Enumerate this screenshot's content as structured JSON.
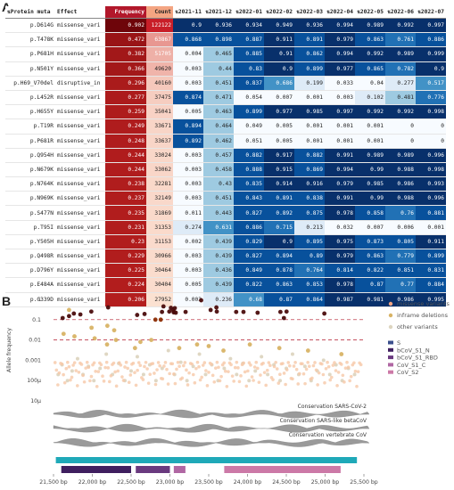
{
  "panel_a": {
    "letter": "A",
    "columns": [
      "Protein muta",
      "Effect",
      "Frequency",
      "Count",
      "2021-11",
      "2021-12",
      "2022-01",
      "2022-02",
      "2022-03",
      "2022-04",
      "2022-05",
      "2022-06",
      "2022-07"
    ],
    "rows": [
      [
        "p.D614G",
        "missense_vari",
        "0.902",
        "122122",
        "0.9",
        "0.936",
        "0.934",
        "0.949",
        "0.936",
        "0.994",
        "0.989",
        "0.992",
        "0.997"
      ],
      [
        "p.T478K",
        "missense_vari",
        "0.472",
        "63867",
        "0.868",
        "0.898",
        "0.887",
        "0.911",
        "0.891",
        "0.979",
        "0.863",
        "0.761",
        "0.886"
      ],
      [
        "p.P681H",
        "missense_vari",
        "0.382",
        "51705",
        "0.004",
        "0.465",
        "0.885",
        "0.91",
        "0.862",
        "0.994",
        "0.992",
        "0.989",
        "0.999"
      ],
      [
        "p.N501Y",
        "missense_vari",
        "0.366",
        "49620",
        "0.003",
        "0.44",
        "0.83",
        "0.9",
        "0.899",
        "0.977",
        "0.865",
        "0.782",
        "0.9"
      ],
      [
        "p.H69_V70del",
        "disruptive_in",
        "0.296",
        "40160",
        "0.003",
        "0.451",
        "0.837",
        "0.686",
        "0.199",
        "0.033",
        "0.04",
        "0.277",
        "0.517"
      ],
      [
        "p.L452R",
        "missense_vari",
        "0.277",
        "37475",
        "0.874",
        "0.471",
        "0.054",
        "0.007",
        "0.001",
        "0.003",
        "0.102",
        "0.481",
        "0.776"
      ],
      [
        "p.H655Y",
        "missense_vari",
        "0.259",
        "35041",
        "0.005",
        "0.463",
        "0.899",
        "0.977",
        "0.985",
        "0.997",
        "0.992",
        "0.992",
        "0.998"
      ],
      [
        "p.T19R",
        "missense_vari",
        "0.249",
        "33671",
        "0.894",
        "0.464",
        "0.049",
        "0.005",
        "0.001",
        "0.001",
        "0.001",
        "0",
        "0"
      ],
      [
        "p.P681R",
        "missense_vari",
        "0.248",
        "33637",
        "0.892",
        "0.462",
        "0.051",
        "0.005",
        "0.001",
        "0.001",
        "0.001",
        "0",
        "0"
      ],
      [
        "p.Q954H",
        "missense_vari",
        "0.244",
        "33024",
        "0.003",
        "0.457",
        "0.882",
        "0.917",
        "0.882",
        "0.991",
        "0.989",
        "0.989",
        "0.996"
      ],
      [
        "p.N679K",
        "missense_vari",
        "0.244",
        "33062",
        "0.003",
        "0.458",
        "0.888",
        "0.915",
        "0.869",
        "0.994",
        "0.99",
        "0.988",
        "0.998"
      ],
      [
        "p.N764K",
        "missense_vari",
        "0.238",
        "32281",
        "0.003",
        "0.43",
        "0.835",
        "0.914",
        "0.916",
        "0.979",
        "0.985",
        "0.986",
        "0.993"
      ],
      [
        "p.N969K",
        "missense_vari",
        "0.237",
        "32149",
        "0.003",
        "0.451",
        "0.843",
        "0.891",
        "0.838",
        "0.991",
        "0.99",
        "0.988",
        "0.996"
      ],
      [
        "p.S477N",
        "missense_vari",
        "0.235",
        "31869",
        "0.011",
        "0.443",
        "0.827",
        "0.892",
        "0.875",
        "0.978",
        "0.858",
        "0.76",
        "0.881"
      ],
      [
        "p.T95I",
        "missense_vari",
        "0.231",
        "31353",
        "0.274",
        "0.631",
        "0.886",
        "0.715",
        "0.213",
        "0.032",
        "0.007",
        "0.006",
        "0.001"
      ],
      [
        "p.Y505H",
        "missense_vari",
        "0.23",
        "31153",
        "0.002",
        "0.439",
        "0.829",
        "0.9",
        "0.895",
        "0.975",
        "0.873",
        "0.805",
        "0.911"
      ],
      [
        "p.Q498R",
        "missense_vari",
        "0.229",
        "30966",
        "0.003",
        "0.439",
        "0.827",
        "0.894",
        "0.89",
        "0.979",
        "0.863",
        "0.779",
        "0.899"
      ],
      [
        "p.D796Y",
        "missense_vari",
        "0.225",
        "30464",
        "0.003",
        "0.436",
        "0.849",
        "0.878",
        "0.764",
        "0.814",
        "0.822",
        "0.851",
        "0.831"
      ],
      [
        "p.E484A",
        "missense_vari",
        "0.224",
        "30404",
        "0.005",
        "0.439",
        "0.822",
        "0.863",
        "0.853",
        "0.978",
        "0.87",
        "0.77",
        "0.884"
      ],
      [
        "p.G339D",
        "missense_vari",
        "0.206",
        "27952",
        "0.003",
        "0.236",
        "0.68",
        "0.87",
        "0.864",
        "0.987",
        "0.981",
        "0.986",
        "0.995"
      ]
    ]
  },
  "panel_b": {
    "letter": "B",
    "y_tick_labels": [
      "1",
      "0.1",
      "0.01",
      "0.001",
      "100μ",
      "10μ"
    ],
    "x_tick_labels": [
      "21,500 bp",
      "22,000 bp",
      "22,500 bp",
      "23,000 bp",
      "23,500 bp",
      "24,000 bp",
      "24,500 bp",
      "25,000 bp",
      "25,500 bp"
    ],
    "ylabel": "Allele frequency",
    "legend": [
      {
        "label": "missense variants",
        "color": "#f4a582",
        "kind": "dot"
      },
      {
        "label": "inframe deletions",
        "color": "#d8b365",
        "kind": "dot"
      },
      {
        "label": "other variants",
        "color": "#ddd5c0",
        "kind": "dot"
      },
      {
        "label": "S",
        "color": "#3b4f8c",
        "kind": "bar"
      },
      {
        "label": "bCoV_S1_N",
        "color": "#3f1f5f",
        "kind": "bar"
      },
      {
        "label": "bCoV_S1_RBD",
        "color": "#6a3a7f",
        "kind": "bar"
      },
      {
        "label": "CoV_S1_C",
        "color": "#b067a3",
        "kind": "bar"
      },
      {
        "label": "CoV_S2",
        "color": "#cc79a7",
        "kind": "bar"
      }
    ],
    "conservation_tracks": [
      "Conservation SARS-CoV-2",
      "Conservation SARS-like betaCoV",
      "Conservation vertebrate CoV"
    ]
  },
  "chart_data": {
    "type": "scatter",
    "xlabel": "",
    "ylabel": "Allele frequency",
    "xlim": [
      21500,
      25500
    ],
    "ylim": [
      1e-05,
      1
    ],
    "y_scale": "log",
    "grid": false,
    "legend_placement": "right",
    "series": [
      {
        "name": "missense variants",
        "color": "#f4a582",
        "points": [
          [
            21618,
            0.12
          ],
          [
            21700,
            0.15
          ],
          [
            21762,
            0.2
          ],
          [
            21846,
            0.18
          ],
          [
            21987,
            0.25
          ],
          [
            22204,
            0.4
          ],
          [
            22578,
            0.17
          ],
          [
            22673,
            0.19
          ],
          [
            22813,
            0.1
          ],
          [
            22882,
            0.1
          ],
          [
            22898,
            0.24
          ],
          [
            22917,
            0.45
          ],
          [
            22992,
            0.25
          ],
          [
            23013,
            0.38
          ],
          [
            23040,
            0.3
          ],
          [
            23048,
            0.23
          ],
          [
            23055,
            0.24
          ],
          [
            23063,
            0.37
          ],
          [
            23075,
            0.22
          ],
          [
            23202,
            0.24
          ],
          [
            23403,
            0.9
          ],
          [
            23525,
            0.3
          ],
          [
            23599,
            0.4
          ],
          [
            23604,
            0.25
          ],
          [
            23854,
            0.24
          ],
          [
            23948,
            0.24
          ],
          [
            24130,
            0.22
          ],
          [
            24424,
            0.24
          ],
          [
            24469,
            0.12
          ],
          [
            24503,
            0.25
          ],
          [
            24990,
            0.2
          ]
        ]
      },
      {
        "name": "inframe deletions",
        "color": "#d8b365",
        "points": [
          [
            21630,
            0.02
          ],
          [
            21700,
            0.3
          ],
          [
            21770,
            0.015
          ],
          [
            21990,
            0.04
          ],
          [
            22030,
            0.012
          ],
          [
            22190,
            0.006
          ],
          [
            22194,
            0.05
          ],
          [
            22282,
            0.03
          ],
          [
            22305,
            0.01
          ],
          [
            22550,
            0.004
          ],
          [
            22620,
            0.008
          ],
          [
            22760,
            0.01
          ],
          [
            23120,
            0.004
          ],
          [
            23350,
            0.006
          ],
          [
            23500,
            0.005
          ],
          [
            23690,
            0.003
          ],
          [
            24030,
            0.006
          ],
          [
            24410,
            0.004
          ],
          [
            24780,
            0.003
          ],
          [
            25210,
            0.002
          ]
        ]
      },
      {
        "name": "other variants",
        "color": "#ddd5c0",
        "points": [
          [
            21560,
            0.0002
          ],
          [
            21610,
            0.0006
          ],
          [
            21680,
            0.0001
          ],
          [
            21740,
            0.0003
          ],
          [
            21810,
            0.0012
          ],
          [
            21880,
            0.0002
          ],
          [
            21950,
            0.0005
          ],
          [
            22020,
            0.0001
          ],
          [
            22100,
            0.0004
          ],
          [
            22180,
            0.002
          ],
          [
            22260,
            0.0002
          ],
          [
            22340,
            0.0007
          ],
          [
            22420,
            0.0001
          ],
          [
            22500,
            0.0003
          ],
          [
            22580,
            0.0015
          ],
          [
            22660,
            0.0002
          ],
          [
            22740,
            0.0006
          ],
          [
            22820,
            0.0001
          ],
          [
            22900,
            0.0004
          ],
          [
            22980,
            0.003
          ],
          [
            23060,
            0.0002
          ],
          [
            23140,
            0.0008
          ],
          [
            23220,
            0.0001
          ],
          [
            23300,
            0.0005
          ],
          [
            23380,
            0.002
          ],
          [
            23460,
            0.0002
          ],
          [
            23540,
            0.0006
          ],
          [
            23620,
            0.0001
          ],
          [
            23700,
            0.0004
          ],
          [
            23780,
            0.0012
          ],
          [
            23860,
            0.0002
          ],
          [
            23940,
            0.0007
          ],
          [
            24020,
            0.0001
          ],
          [
            24100,
            0.0003
          ],
          [
            24180,
            0.0015
          ],
          [
            24260,
            0.0002
          ],
          [
            24340,
            0.0006
          ],
          [
            24420,
            0.0001
          ],
          [
            24500,
            0.0004
          ],
          [
            24580,
            0.002
          ],
          [
            24660,
            0.0002
          ],
          [
            24740,
            0.0005
          ],
          [
            24820,
            0.0001
          ],
          [
            24900,
            0.0003
          ],
          [
            24980,
            0.001
          ],
          [
            25060,
            0.0002
          ],
          [
            25140,
            0.0006
          ],
          [
            25220,
            0.0001
          ],
          [
            25300,
            0.0004
          ],
          [
            25380,
            0.0002
          ]
        ]
      }
    ],
    "reference_lines": [
      0.1,
      0.01
    ],
    "domains": [
      {
        "name": "S",
        "start": 21563,
        "end": 25384
      },
      {
        "name": "bCoV_S1_N",
        "start": 21600,
        "end": 22500
      },
      {
        "name": "bCoV_S1_RBD",
        "start": 22560,
        "end": 23000
      },
      {
        "name": "CoV_S1_C",
        "start": 23050,
        "end": 23200
      },
      {
        "name": "CoV_S2",
        "start": 23700,
        "end": 25200
      }
    ]
  }
}
